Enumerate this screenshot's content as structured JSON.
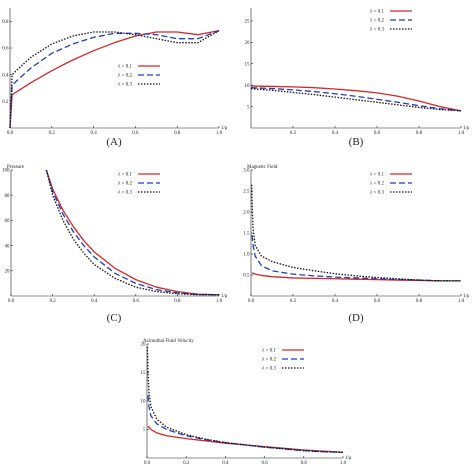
{
  "chart_data": [
    {
      "id": "A",
      "type": "line",
      "panel_label": "(A)",
      "ylabel": "",
      "xlabel": "1/ρ",
      "xlim": [
        0,
        1
      ],
      "ylim": [
        0,
        0.9
      ],
      "xticks": [
        "0.0",
        "0.2",
        "0.4",
        "0.6",
        "0.8",
        "1.0"
      ],
      "yticks": [
        "0.2",
        "0.4",
        "0.6",
        "0.8"
      ],
      "ytick_values": [
        0.2,
        0.4,
        0.6,
        0.8
      ],
      "legend": "right-middle",
      "series": [
        {
          "name": "λ = 0.1",
          "color": "#d62728",
          "dash": "",
          "x": [
            0.0,
            0.01,
            0.03,
            0.05,
            0.1,
            0.2,
            0.3,
            0.4,
            0.5,
            0.6,
            0.7,
            0.8,
            0.9,
            1.0
          ],
          "y": [
            0.0,
            0.25,
            0.27,
            0.29,
            0.34,
            0.43,
            0.51,
            0.58,
            0.64,
            0.69,
            0.72,
            0.72,
            0.7,
            0.73
          ]
        },
        {
          "name": "λ = 0.2",
          "color": "#1f3fbf",
          "dash": "6,3",
          "x": [
            0.0,
            0.01,
            0.03,
            0.05,
            0.1,
            0.2,
            0.3,
            0.4,
            0.5,
            0.6,
            0.7,
            0.8,
            0.9,
            1.0
          ],
          "y": [
            0.0,
            0.32,
            0.35,
            0.38,
            0.45,
            0.56,
            0.63,
            0.68,
            0.71,
            0.71,
            0.7,
            0.67,
            0.67,
            0.73
          ]
        },
        {
          "name": "λ = 0.3",
          "color": "#111111",
          "dash": "1.5,1.5",
          "x": [
            0.0,
            0.01,
            0.03,
            0.05,
            0.1,
            0.2,
            0.3,
            0.4,
            0.5,
            0.6,
            0.7,
            0.8,
            0.9,
            1.0
          ],
          "y": [
            0.0,
            0.4,
            0.43,
            0.46,
            0.53,
            0.63,
            0.69,
            0.72,
            0.72,
            0.7,
            0.67,
            0.64,
            0.64,
            0.73
          ]
        }
      ]
    },
    {
      "id": "B",
      "type": "line",
      "panel_label": "(B)",
      "ylabel": "",
      "xlabel": "1/ρ",
      "xlim": [
        0,
        1
      ],
      "ylim": [
        0,
        28
      ],
      "xticks": [
        "0.2",
        "0.4",
        "0.6",
        "0.8",
        "1.0"
      ],
      "xtick_values": [
        0.2,
        0.4,
        0.6,
        0.8,
        1.0
      ],
      "yticks": [
        "5",
        "10",
        "15",
        "20",
        "25"
      ],
      "ytick_values": [
        5,
        10,
        15,
        20,
        25
      ],
      "legend": "top-right",
      "series": [
        {
          "name": "λ = 0.1",
          "color": "#d62728",
          "dash": "",
          "x": [
            0.0,
            0.1,
            0.2,
            0.3,
            0.4,
            0.5,
            0.6,
            0.7,
            0.8,
            0.9,
            1.0
          ],
          "y": [
            9.8,
            9.7,
            9.6,
            9.4,
            9.1,
            8.7,
            8.2,
            7.4,
            6.3,
            5.0,
            4.0
          ]
        },
        {
          "name": "λ = 0.2",
          "color": "#1f3fbf",
          "dash": "6,3",
          "x": [
            0.0,
            0.1,
            0.2,
            0.3,
            0.4,
            0.5,
            0.6,
            0.7,
            0.8,
            0.9,
            1.0
          ],
          "y": [
            9.4,
            9.2,
            8.9,
            8.5,
            8.0,
            7.4,
            6.7,
            6.0,
            5.2,
            4.5,
            4.0
          ]
        },
        {
          "name": "λ = 0.3",
          "color": "#111111",
          "dash": "1.5,1.5",
          "x": [
            0.0,
            0.1,
            0.2,
            0.3,
            0.4,
            0.5,
            0.6,
            0.7,
            0.8,
            0.9,
            1.0
          ],
          "y": [
            9.2,
            8.8,
            8.3,
            7.8,
            7.2,
            6.6,
            6.0,
            5.4,
            4.8,
            4.3,
            4.0
          ]
        }
      ]
    },
    {
      "id": "C",
      "type": "line",
      "panel_label": "(C)",
      "ylabel": "Pressure",
      "xlabel": "1/ρ",
      "xlim": [
        0,
        1
      ],
      "ylim": [
        0,
        100
      ],
      "xticks": [
        "0.0",
        "0.2",
        "0.4",
        "0.6",
        "0.8",
        "1.0"
      ],
      "yticks": [
        "20",
        "40",
        "60",
        "80",
        "100"
      ],
      "ytick_values": [
        20,
        40,
        60,
        80,
        100
      ],
      "legend": "top-right",
      "series": [
        {
          "name": "λ = 0.1",
          "color": "#d62728",
          "dash": "",
          "x": [
            0.17,
            0.2,
            0.25,
            0.3,
            0.35,
            0.4,
            0.5,
            0.6,
            0.7,
            0.8,
            0.9,
            1.0
          ],
          "y": [
            100,
            85,
            68,
            55,
            44,
            35,
            22,
            13,
            7,
            3.5,
            1.5,
            1
          ]
        },
        {
          "name": "λ = 0.2",
          "color": "#1f3fbf",
          "dash": "6,3",
          "x": [
            0.17,
            0.2,
            0.25,
            0.3,
            0.35,
            0.4,
            0.5,
            0.6,
            0.7,
            0.8,
            0.9,
            1.0
          ],
          "y": [
            100,
            83,
            65,
            51,
            40,
            31,
            18,
            10,
            5,
            2.5,
            1.2,
            1
          ]
        },
        {
          "name": "λ = 0.3",
          "color": "#111111",
          "dash": "1.5,1.5",
          "x": [
            0.17,
            0.2,
            0.25,
            0.3,
            0.35,
            0.4,
            0.5,
            0.6,
            0.7,
            0.8,
            0.9,
            1.0
          ],
          "y": [
            100,
            80,
            60,
            45,
            34,
            25,
            14,
            7,
            3.5,
            1.8,
            1,
            1
          ]
        }
      ]
    },
    {
      "id": "D",
      "type": "line",
      "panel_label": "(D)",
      "ylabel": "Magnetic Field",
      "xlabel": "1/ρ",
      "xlim": [
        0,
        1
      ],
      "ylim": [
        0,
        3.0
      ],
      "xticks": [
        "0.0",
        "0.2",
        "0.4",
        "0.6",
        "0.8",
        "1.0"
      ],
      "yticks": [
        "0.5",
        "1.0",
        "1.5",
        "2.0",
        "2.5",
        "3.0"
      ],
      "ytick_values": [
        0.5,
        1.0,
        1.5,
        2.0,
        2.5,
        3.0
      ],
      "legend": "top-right",
      "series": [
        {
          "name": "λ = 0.1",
          "color": "#d62728",
          "dash": "",
          "x": [
            0.005,
            0.02,
            0.05,
            0.1,
            0.2,
            0.3,
            0.4,
            0.5,
            0.6,
            0.7,
            0.8,
            0.9,
            1.0
          ],
          "y": [
            0.55,
            0.52,
            0.49,
            0.46,
            0.43,
            0.42,
            0.41,
            0.4,
            0.39,
            0.38,
            0.37,
            0.36,
            0.36
          ]
        },
        {
          "name": "λ = 0.2",
          "color": "#1f3fbf",
          "dash": "6,3",
          "x": [
            0.005,
            0.01,
            0.02,
            0.05,
            0.1,
            0.2,
            0.3,
            0.4,
            0.5,
            0.6,
            0.7,
            0.8,
            0.9,
            1.0
          ],
          "y": [
            1.45,
            1.2,
            0.95,
            0.72,
            0.6,
            0.52,
            0.48,
            0.45,
            0.43,
            0.41,
            0.39,
            0.38,
            0.36,
            0.36
          ]
        },
        {
          "name": "λ = 0.3",
          "color": "#111111",
          "dash": "1.5,1.5",
          "x": [
            0.003,
            0.006,
            0.01,
            0.02,
            0.05,
            0.1,
            0.2,
            0.3,
            0.4,
            0.5,
            0.6,
            0.7,
            0.8,
            0.9,
            1.0
          ],
          "y": [
            2.65,
            2.1,
            1.6,
            1.2,
            0.95,
            0.82,
            0.68,
            0.6,
            0.53,
            0.48,
            0.44,
            0.41,
            0.38,
            0.36,
            0.36
          ]
        }
      ]
    },
    {
      "id": "E",
      "type": "line",
      "panel_label": "",
      "ylabel": "Azimuthal Fluid Velocity",
      "xlabel": "1/ρ",
      "xlim": [
        0,
        1
      ],
      "ylim": [
        0,
        20
      ],
      "xticks": [
        "0.0",
        "0.2",
        "0.4",
        "0.6",
        "0.8",
        "1.0"
      ],
      "yticks": [
        "5",
        "10",
        "15",
        "20"
      ],
      "ytick_values": [
        5,
        10,
        15,
        20
      ],
      "legend": "top-right",
      "series": [
        {
          "name": "λ = 0.1",
          "color": "#d62728",
          "dash": "",
          "x": [
            0.005,
            0.02,
            0.05,
            0.1,
            0.2,
            0.3,
            0.4,
            0.5,
            0.6,
            0.7,
            0.8,
            0.9,
            1.0
          ],
          "y": [
            5.6,
            5.0,
            4.4,
            3.9,
            3.4,
            3.0,
            2.6,
            2.3,
            2.0,
            1.7,
            1.4,
            1.2,
            1.0
          ]
        },
        {
          "name": "λ = 0.2",
          "color": "#1f3fbf",
          "dash": "6,3",
          "x": [
            0.005,
            0.01,
            0.02,
            0.05,
            0.1,
            0.2,
            0.3,
            0.4,
            0.5,
            0.6,
            0.7,
            0.8,
            0.9,
            1.0
          ],
          "y": [
            11,
            9,
            7.4,
            6.0,
            5.0,
            3.9,
            3.2,
            2.7,
            2.3,
            1.9,
            1.6,
            1.3,
            1.1,
            1.0
          ]
        },
        {
          "name": "λ = 0.3",
          "color": "#111111",
          "dash": "1.5,1.5",
          "x": [
            0.002,
            0.005,
            0.01,
            0.02,
            0.05,
            0.1,
            0.2,
            0.3,
            0.4,
            0.5,
            0.6,
            0.7,
            0.8,
            0.9,
            1.0
          ],
          "y": [
            19.5,
            15,
            11.5,
            9.0,
            6.8,
            5.4,
            4.1,
            3.3,
            2.7,
            2.3,
            1.9,
            1.6,
            1.3,
            1.1,
            1.0
          ]
        }
      ]
    }
  ]
}
